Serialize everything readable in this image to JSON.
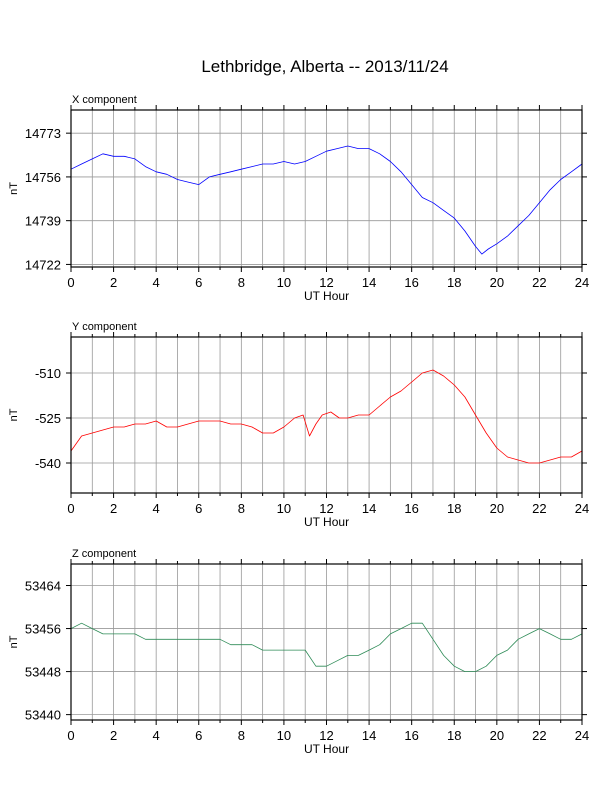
{
  "title": "Lethbridge, Alberta -- 2013/11/24",
  "chart_data": [
    {
      "type": "line",
      "panel_title": "X component",
      "xlabel": "UT Hour",
      "ylabel": "nT",
      "xlim": [
        0,
        24
      ],
      "ylim": [
        14721,
        14782
      ],
      "xticks": [
        0,
        2,
        4,
        6,
        8,
        10,
        12,
        14,
        16,
        18,
        20,
        22,
        24
      ],
      "yticks": [
        14722,
        14739,
        14756,
        14773
      ],
      "grid": true,
      "color": "#0000ff",
      "series": [
        {
          "x": [
            0,
            0.5,
            1,
            1.5,
            2,
            2.5,
            3,
            3.5,
            4,
            4.5,
            5,
            5.5,
            6,
            6.5,
            7,
            7.5,
            8,
            8.5,
            9,
            9.5,
            10,
            10.5,
            11,
            11.5,
            12,
            12.5,
            13,
            13.5,
            14,
            14.5,
            15,
            15.5,
            16,
            16.5,
            17,
            17.5,
            18,
            18.5,
            19,
            19.3,
            19.6,
            20,
            20.5,
            21,
            21.5,
            22,
            22.5,
            23,
            23.5,
            24
          ],
          "y": [
            14759,
            14761,
            14763,
            14765,
            14764,
            14764,
            14763,
            14760,
            14758,
            14757,
            14755,
            14754,
            14753,
            14756,
            14757,
            14758,
            14759,
            14760,
            14761,
            14761,
            14762,
            14761,
            14762,
            14764,
            14766,
            14767,
            14768,
            14767,
            14767,
            14765,
            14762,
            14758,
            14753,
            14748,
            14746,
            14743,
            14740,
            14735,
            14729,
            14726,
            14728,
            14730,
            14733,
            14737,
            14741,
            14746,
            14751,
            14755,
            14758,
            14761
          ]
        }
      ]
    },
    {
      "type": "line",
      "panel_title": "Y component",
      "xlabel": "UT Hour",
      "ylabel": "nT",
      "xlim": [
        0,
        24
      ],
      "ylim": [
        -550,
        -498
      ],
      "xticks": [
        0,
        2,
        4,
        6,
        8,
        10,
        12,
        14,
        16,
        18,
        20,
        22,
        24
      ],
      "yticks": [
        -510,
        -525,
        -540
      ],
      "grid": true,
      "color": "#ff0000",
      "series": [
        {
          "x": [
            0,
            0.5,
            1,
            1.5,
            2,
            2.5,
            3,
            3.5,
            4,
            4.5,
            5,
            5.5,
            6,
            6.5,
            7,
            7.5,
            8,
            8.5,
            9,
            9.5,
            10,
            10.5,
            10.9,
            11.2,
            11.5,
            11.8,
            12.2,
            12.6,
            13,
            13.5,
            14,
            14.5,
            15,
            15.5,
            16,
            16.5,
            17,
            17.5,
            18,
            18.5,
            19,
            19.5,
            20,
            20.5,
            21,
            21.5,
            22,
            22.5,
            23,
            23.5,
            24
          ],
          "y": [
            -536,
            -531,
            -530,
            -529,
            -528,
            -528,
            -527,
            -527,
            -526,
            -528,
            -528,
            -527,
            -526,
            -526,
            -526,
            -527,
            -527,
            -528,
            -530,
            -530,
            -528,
            -525,
            -524,
            -531,
            -527,
            -524,
            -523,
            -525,
            -525,
            -524,
            -524,
            -521,
            -518,
            -516,
            -513,
            -510,
            -509,
            -511,
            -514,
            -518,
            -524,
            -530,
            -535,
            -538,
            -539,
            -540,
            -540,
            -539,
            -538,
            -538,
            -536
          ]
        }
      ]
    },
    {
      "type": "line",
      "panel_title": "Z component",
      "xlabel": "UT Hour",
      "ylabel": "nT",
      "xlim": [
        0,
        24
      ],
      "ylim": [
        53439,
        53468
      ],
      "xticks": [
        0,
        2,
        4,
        6,
        8,
        10,
        12,
        14,
        16,
        18,
        20,
        22,
        24
      ],
      "yticks": [
        53440,
        53448,
        53456,
        53464
      ],
      "grid": true,
      "color": "#2e8b57",
      "series": [
        {
          "x": [
            0,
            0.5,
            1,
            1.5,
            2,
            2.5,
            3,
            3.5,
            4,
            4.5,
            5,
            5.5,
            6,
            6.5,
            7,
            7.5,
            8,
            8.5,
            9,
            9.5,
            10,
            10.5,
            11,
            11.5,
            12,
            12.5,
            13,
            13.5,
            14,
            14.5,
            15,
            15.5,
            16,
            16.5,
            17,
            17.5,
            18,
            18.5,
            19,
            19.5,
            20,
            20.5,
            21,
            21.5,
            22,
            22.5,
            23,
            23.5,
            24
          ],
          "y": [
            53456,
            53457,
            53456,
            53455,
            53455,
            53455,
            53455,
            53454,
            53454,
            53454,
            53454,
            53454,
            53454,
            53454,
            53454,
            53453,
            53453,
            53453,
            53452,
            53452,
            53452,
            53452,
            53452,
            53449,
            53449,
            53450,
            53451,
            53451,
            53452,
            53453,
            53455,
            53456,
            53457,
            53457,
            53454,
            53451,
            53449,
            53448,
            53448,
            53449,
            53451,
            53452,
            53454,
            53455,
            53456,
            53455,
            53454,
            53454,
            53455
          ]
        }
      ]
    }
  ]
}
